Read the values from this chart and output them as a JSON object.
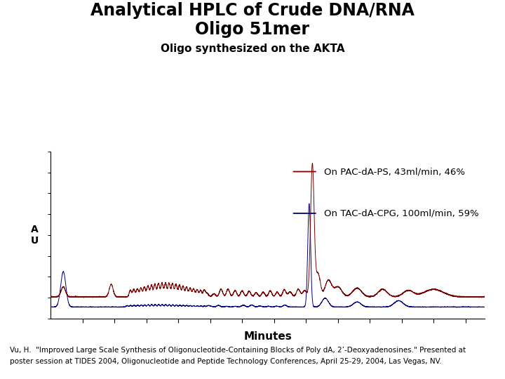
{
  "title_line1": "Analytical HPLC of Crude DNA/RNA",
  "title_line2": "Oligo 51mer",
  "subtitle": "Oligo synthesized on the AKTA",
  "xlabel": "Minutes",
  "ylabel": "A\nU",
  "legend1": "On PAC-dA-PS, 43ml/min, 46%",
  "legend2": "On TAC-dA-CPG, 100ml/min, 59%",
  "color_red": "#7B0000",
  "color_blue": "#000080",
  "footnote1": "Vu, H.  \"Improved Large Scale Synthesis of Oligonucleotide-Containing Blocks of Poly dA, 2’-Deoxyadenosines.\" Presented at",
  "footnote2": "poster session at TIDES 2004, Oligonucleotide and Peptide Technology Conferences, April 25-29, 2004, Las Vegas, NV.",
  "bg_color": "#ffffff",
  "title_fontsize": 17,
  "subtitle_fontsize": 11,
  "xlabel_fontsize": 11,
  "ylabel_fontsize": 10,
  "legend_fontsize": 9.5,
  "footnote_fontsize": 7.5
}
